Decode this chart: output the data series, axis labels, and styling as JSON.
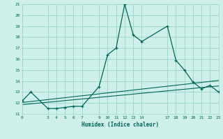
{
  "xlabel": "Humidex (Indice chaleur)",
  "bg_color": "#cff0ea",
  "grid_color": "#9fd8cc",
  "line_color": "#006655",
  "xlim": [
    0,
    23
  ],
  "ylim": [
    11,
    21
  ],
  "xticks": [
    0,
    3,
    4,
    5,
    6,
    7,
    9,
    10,
    11,
    12,
    13,
    14,
    17,
    18,
    19,
    20,
    21,
    22,
    23
  ],
  "yticks": [
    11,
    12,
    13,
    14,
    15,
    16,
    17,
    18,
    19,
    20,
    21
  ],
  "main_x": [
    0,
    1,
    3,
    4,
    5,
    6,
    7,
    9,
    10,
    11,
    12,
    13,
    14,
    17,
    18,
    19,
    20,
    21,
    22,
    23
  ],
  "main_y": [
    12.2,
    13.0,
    11.5,
    11.5,
    11.6,
    11.7,
    11.7,
    13.5,
    16.4,
    17.0,
    21.0,
    18.2,
    17.6,
    19.0,
    15.9,
    15.0,
    13.9,
    13.3,
    13.6,
    13.0
  ],
  "line2_x": [
    0,
    23
  ],
  "line2_y": [
    11.85,
    13.55
  ],
  "line3_x": [
    0,
    23
  ],
  "line3_y": [
    12.05,
    14.05
  ]
}
